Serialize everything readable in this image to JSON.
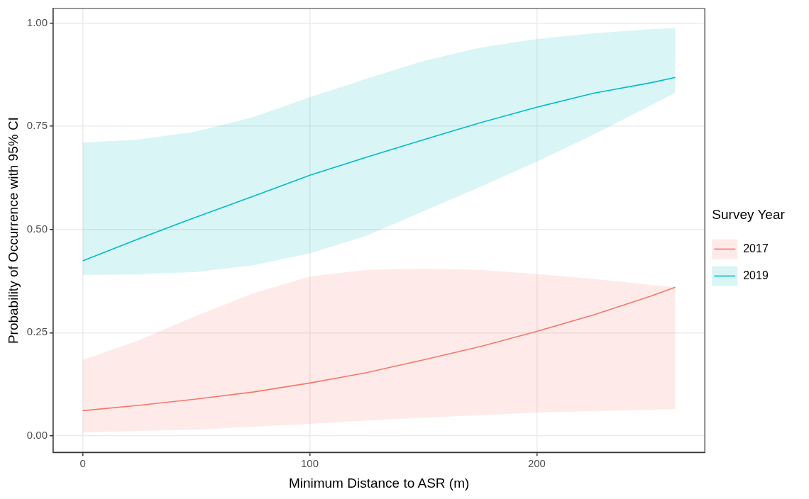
{
  "chart_data": {
    "type": "line",
    "xlabel": "Minimum Distance to ASR (m)",
    "ylabel": "Probability of Occurrence with 95% CI",
    "legend_title": "Survey Year",
    "x": [
      0,
      25,
      50,
      75,
      100,
      125,
      150,
      175,
      200,
      225,
      250,
      261
    ],
    "series": [
      {
        "name": "2017",
        "color": "#f8766d",
        "values": [
          0.061,
          0.074,
          0.089,
          0.106,
          0.128,
          0.153,
          0.184,
          0.216,
          0.253,
          0.293,
          0.338,
          0.36
        ],
        "lower": [
          0.008,
          0.012,
          0.015,
          0.022,
          0.029,
          0.037,
          0.044,
          0.05,
          0.056,
          0.06,
          0.063,
          0.065
        ],
        "upper": [
          0.184,
          0.232,
          0.291,
          0.345,
          0.386,
          0.402,
          0.405,
          0.402,
          0.392,
          0.38,
          0.366,
          0.36
        ]
      },
      {
        "name": "2019",
        "color": "#00bfc4",
        "values": [
          0.424,
          0.478,
          0.53,
          0.58,
          0.631,
          0.675,
          0.717,
          0.758,
          0.796,
          0.83,
          0.855,
          0.868
        ],
        "lower": [
          0.39,
          0.391,
          0.397,
          0.413,
          0.442,
          0.485,
          0.544,
          0.603,
          0.664,
          0.73,
          0.8,
          0.831
        ],
        "upper": [
          0.71,
          0.718,
          0.737,
          0.772,
          0.82,
          0.865,
          0.908,
          0.94,
          0.961,
          0.975,
          0.985,
          0.988
        ]
      }
    ],
    "xlim": [
      -13,
      274
    ],
    "xticks": [
      0,
      100,
      200
    ],
    "ylim": [
      -0.04,
      1.035
    ],
    "yticks": [
      {
        "value": 0,
        "label": "0.00"
      },
      {
        "value": 0.25,
        "label": "0.25"
      },
      {
        "value": 0.5,
        "label": "0.50"
      },
      {
        "value": 0.75,
        "label": "0.75"
      },
      {
        "value": 1,
        "label": "1.00"
      }
    ],
    "grid": true,
    "legend": "right",
    "marker": "none",
    "line_style": "solid"
  }
}
